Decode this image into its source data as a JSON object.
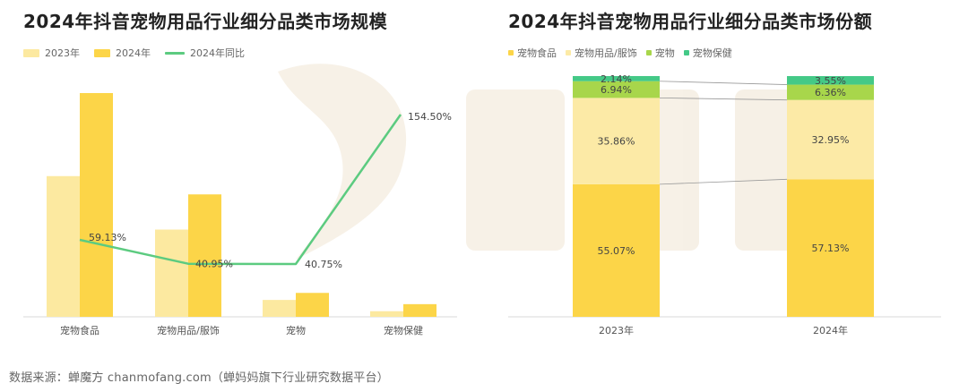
{
  "left_title": "2024年抖音宠物用品行业细分品类市场规模",
  "right_title": "2024年抖音宠物用品行业细分品类市场份额",
  "footer": "数据来源：蝉魔方 chanmofang.com（蝉妈妈旗下行业研究数据平台）",
  "colors": {
    "y2023": "#FCE9A0",
    "y2024": "#FCD548",
    "growth": "#5CCB80",
    "food": "#FCD548",
    "supplies": "#FCEAA6",
    "pet": "#A8D64B",
    "health": "#44C987"
  },
  "chart_data": [
    {
      "type": "bar",
      "title": "2024年抖音宠物用品行业细分品类市场规模",
      "categories": [
        "宠物食品",
        "宠物用品/服饰",
        "宠物",
        "宠物保健"
      ],
      "series": [
        {
          "name": "2023年",
          "values": [
            100,
            62,
            12,
            4
          ]
        },
        {
          "name": "2024年",
          "values": [
            159,
            87,
            17,
            9
          ]
        },
        {
          "name": "2024年同比",
          "kind": "line",
          "values": [
            59.13,
            40.95,
            40.75,
            154.5
          ],
          "labels": [
            "59.13%",
            "40.95%",
            "40.75%",
            "154.50%"
          ]
        }
      ],
      "legend": "top-left"
    },
    {
      "type": "bar",
      "stacked": true,
      "title": "2024年抖音宠物用品行业细分品类市场份额",
      "categories": [
        "2023年",
        "2024年"
      ],
      "series": [
        {
          "name": "宠物食品",
          "values": [
            55.07,
            57.13
          ],
          "labels": [
            "55.07%",
            "57.13%"
          ]
        },
        {
          "name": "宠物用品/服饰",
          "values": [
            35.86,
            32.95
          ],
          "labels": [
            "35.86%",
            "32.95%"
          ]
        },
        {
          "name": "宠物",
          "values": [
            6.94,
            6.36
          ],
          "labels": [
            "6.94%",
            "6.36%"
          ]
        },
        {
          "name": "宠物保健",
          "values": [
            2.14,
            3.55
          ],
          "labels": [
            "2.14%",
            "3.55%"
          ]
        }
      ],
      "ylim": [
        0,
        100
      ],
      "legend": "top-left"
    }
  ]
}
